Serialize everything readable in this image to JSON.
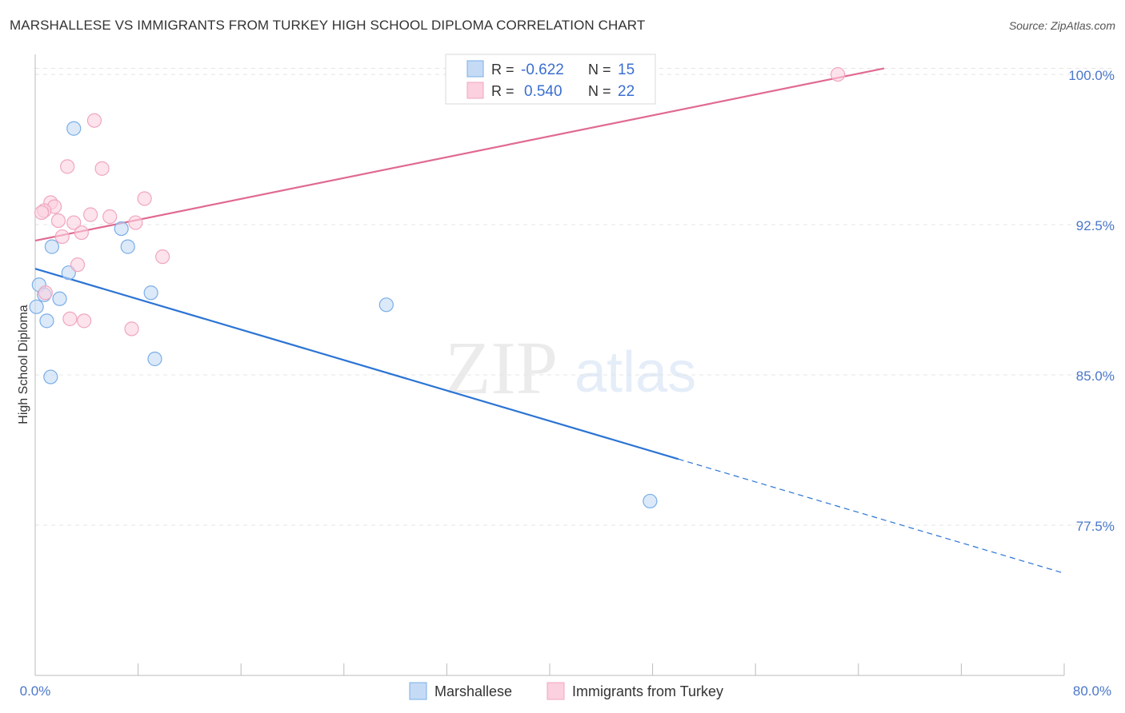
{
  "header": {
    "title": "MARSHALLESE VS IMMIGRANTS FROM TURKEY HIGH SCHOOL DIPLOMA CORRELATION CHART",
    "source": "Source: ZipAtlas.com"
  },
  "watermark": {
    "zip": "ZIP",
    "atlas": "atlas"
  },
  "chart_data": {
    "type": "scatter",
    "title": "MARSHALLESE VS IMMIGRANTS FROM TURKEY HIGH SCHOOL DIPLOMA CORRELATION CHART",
    "xlabel": "",
    "ylabel": "High School Diploma",
    "xlim": [
      0,
      80
    ],
    "ylim": [
      70.0,
      101.0
    ],
    "x_tick_labels": {
      "left": "0.0%",
      "right": "80.0%"
    },
    "y_ticks": [
      {
        "value": 100.0,
        "label": "100.0%"
      },
      {
        "value": 92.5,
        "label": "92.5%"
      },
      {
        "value": 85.0,
        "label": "85.0%"
      },
      {
        "value": 77.5,
        "label": "77.5%"
      }
    ],
    "legend": {
      "r_label": "R =",
      "n_label": "N =",
      "entries": [
        {
          "r": "-0.622",
          "n": "15"
        },
        {
          "r": "0.540",
          "n": "22"
        }
      ]
    },
    "series": [
      {
        "name": "Marshallese",
        "color": "#7aaee8",
        "fill": "#c5dbf5",
        "line_color": "#2b74d4",
        "trend": {
          "x0": 0,
          "y0": 90.3,
          "x1": 50,
          "y1": 80.8,
          "dash_to_x": 80,
          "dash_to_y": 75.1
        },
        "points": [
          [
            3.0,
            97.3
          ],
          [
            1.3,
            91.4
          ],
          [
            2.6,
            90.1
          ],
          [
            6.7,
            92.3
          ],
          [
            7.2,
            91.4
          ],
          [
            0.3,
            89.5
          ],
          [
            0.7,
            89.0
          ],
          [
            1.9,
            88.8
          ],
          [
            9.0,
            89.1
          ],
          [
            0.1,
            88.4
          ],
          [
            0.9,
            87.7
          ],
          [
            1.2,
            84.9
          ],
          [
            9.3,
            85.8
          ],
          [
            27.3,
            88.5
          ],
          [
            47.8,
            78.7
          ]
        ]
      },
      {
        "name": "Immigrants from Turkey",
        "color": "#f0a6bf",
        "fill": "#fbd0df",
        "line_color": "#e06a90",
        "trend": {
          "x0": 0,
          "y0": 91.7,
          "x1": 66.0,
          "y1": 100.3
        },
        "points": [
          [
            4.6,
            97.7
          ],
          [
            2.5,
            95.4
          ],
          [
            5.2,
            95.3
          ],
          [
            1.2,
            93.6
          ],
          [
            1.5,
            93.4
          ],
          [
            0.7,
            93.2
          ],
          [
            0.5,
            93.1
          ],
          [
            8.5,
            93.8
          ],
          [
            4.3,
            93.0
          ],
          [
            5.8,
            92.9
          ],
          [
            1.8,
            92.7
          ],
          [
            3.0,
            92.6
          ],
          [
            7.8,
            92.6
          ],
          [
            2.1,
            91.9
          ],
          [
            3.6,
            92.1
          ],
          [
            9.9,
            90.9
          ],
          [
            3.3,
            90.5
          ],
          [
            0.8,
            89.1
          ],
          [
            2.7,
            87.8
          ],
          [
            3.8,
            87.7
          ],
          [
            7.5,
            87.3
          ],
          [
            62.4,
            100.0
          ]
        ]
      }
    ]
  }
}
